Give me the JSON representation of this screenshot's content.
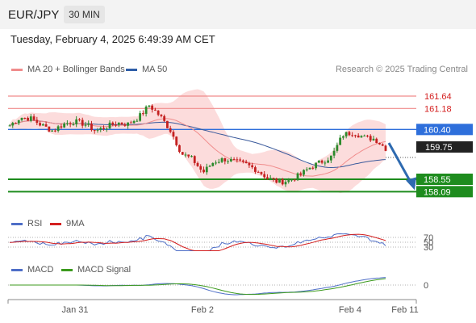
{
  "header": {
    "pair": "EUR/JPY",
    "timeframe": "30 MIN"
  },
  "datetime": "Tuesday, February 4, 2025 6:49:39 AM CET",
  "legend_main": [
    {
      "label": "MA 20 + Bollinger Bands",
      "color": "#f08c8c"
    },
    {
      "label": "MA 50",
      "color": "#2e5ea8"
    }
  ],
  "copyright": "Research © 2025 Trading Central",
  "legend_rsi": [
    {
      "label": "RSI",
      "color": "#4e6ec7"
    },
    {
      "label": "9MA",
      "color": "#d42020"
    }
  ],
  "legend_macd": [
    {
      "label": "MACD",
      "color": "#4e6ec7"
    },
    {
      "label": "MACD Signal",
      "color": "#3c9a1e"
    }
  ],
  "colors": {
    "resistance": "#f08c8c",
    "pivot": "#2e6fdb",
    "support": "#1e8c1e",
    "last": "#222222",
    "arrow": "#2e6ab0"
  },
  "chart_data": {
    "type": "candlestick",
    "price_levels": {
      "resistance": [
        161.64,
        161.18
      ],
      "pivot": 160.4,
      "last": 159.75,
      "support": [
        158.55,
        158.09
      ]
    },
    "price_level_labels": {
      "resistance": [
        "161.64",
        "161.18"
      ],
      "pivot": "160.40",
      "last": "159.75",
      "support": [
        "158.55",
        "158.09"
      ]
    },
    "x_ticks": [
      "Jan 31",
      "Feb 2",
      "Feb 4",
      "Feb 11"
    ],
    "rsi_levels": [
      "70",
      "50",
      "30"
    ],
    "macd_levels": [
      "0"
    ],
    "close_path": [
      160.55,
      160.85,
      160.8,
      160.55,
      160.35,
      160.6,
      160.7,
      160.6,
      160.35,
      160.5,
      160.65,
      160.6,
      160.85,
      161.3,
      160.9,
      160.35,
      159.5,
      159.3,
      158.8,
      159.2,
      159.3,
      159.2,
      159.1,
      158.9,
      158.6,
      158.45,
      158.5,
      158.7,
      159.0,
      159.2,
      159.4,
      160.2,
      160.3,
      160.1,
      160.05,
      159.7
    ],
    "trend_arrow": {
      "from": 159.9,
      "to": 158.15
    }
  }
}
